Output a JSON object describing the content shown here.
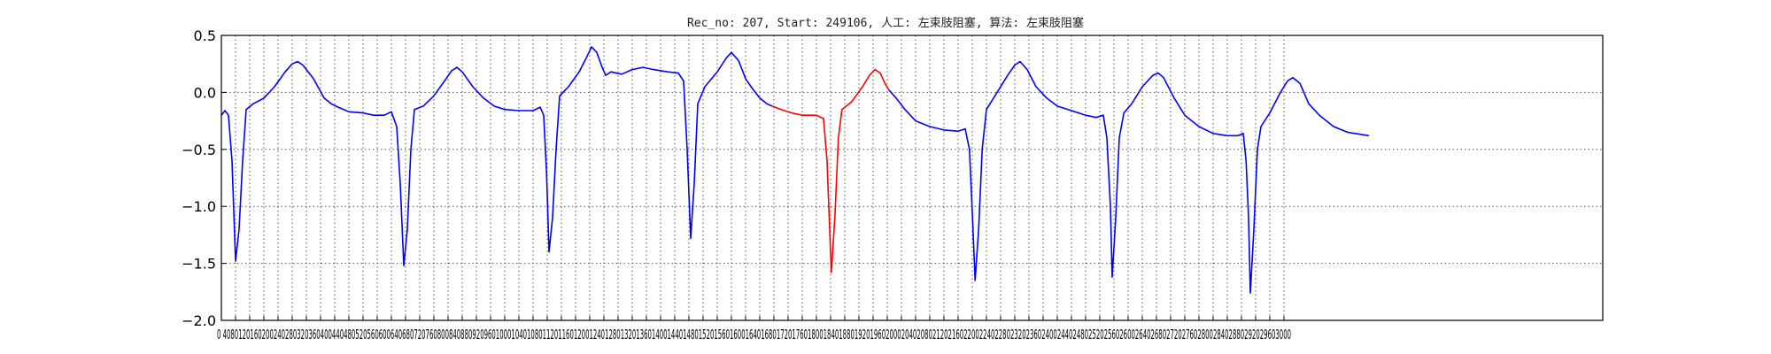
{
  "chart_data": {
    "type": "line",
    "title": "Rec_no: 207, Start: 249106, 人工: 左束肢阻塞, 算法: 左束肢阻塞",
    "xlabel": "",
    "ylabel": "",
    "xlim": [
      0,
      3240
    ],
    "ylim": [
      -2.0,
      0.5
    ],
    "grid": true,
    "yticks": [
      0.5,
      0.0,
      -0.5,
      -1.0,
      -1.5,
      -2.0
    ],
    "ytick_labels": [
      "0.5",
      "0.0",
      "−0.5",
      "−1.0",
      "−1.5",
      "−2.0"
    ],
    "xtick_step": 40,
    "xtick_max": 3000,
    "x_tick_label_text": "0 4080120160200240280320360400440480520560600640680720760800840880920960100010401080112011601200124012801320136014001440148015201560160016401680172017601800184018801920196020002040208021202160220022402280232023602400244024802520256026002640268027202760280028402880292029603000",
    "series": [
      {
        "color": "#0000ff",
        "points": [
          [
            0,
            -0.2
          ],
          [
            10,
            -0.16
          ],
          [
            20,
            -0.2
          ],
          [
            30,
            -0.6
          ],
          [
            40,
            -1.48
          ],
          [
            50,
            -1.2
          ],
          [
            60,
            -0.6
          ],
          [
            70,
            -0.15
          ],
          [
            90,
            -0.1
          ],
          [
            120,
            -0.05
          ],
          [
            150,
            0.05
          ],
          [
            180,
            0.18
          ],
          [
            200,
            0.25
          ],
          [
            215,
            0.27
          ],
          [
            230,
            0.24
          ],
          [
            260,
            0.12
          ],
          [
            290,
            -0.05
          ],
          [
            310,
            -0.1
          ],
          [
            330,
            -0.13
          ],
          [
            360,
            -0.17
          ],
          [
            400,
            -0.18
          ],
          [
            430,
            -0.2
          ],
          [
            460,
            -0.2
          ],
          [
            480,
            -0.17
          ],
          [
            495,
            -0.3
          ],
          [
            505,
            -0.8
          ],
          [
            515,
            -1.52
          ],
          [
            525,
            -1.2
          ],
          [
            535,
            -0.5
          ],
          [
            545,
            -0.15
          ],
          [
            570,
            -0.12
          ],
          [
            600,
            -0.03
          ],
          [
            630,
            0.1
          ],
          [
            650,
            0.19
          ],
          [
            665,
            0.22
          ],
          [
            680,
            0.18
          ],
          [
            710,
            0.05
          ],
          [
            740,
            -0.05
          ],
          [
            770,
            -0.12
          ],
          [
            800,
            -0.15
          ],
          [
            840,
            -0.16
          ],
          [
            880,
            -0.16
          ],
          [
            900,
            -0.13
          ],
          [
            910,
            -0.2
          ],
          [
            918,
            -0.7
          ],
          [
            925,
            -1.4
          ],
          [
            935,
            -1.1
          ],
          [
            945,
            -0.5
          ],
          [
            955,
            -0.03
          ],
          [
            980,
            0.05
          ],
          [
            1010,
            0.18
          ],
          [
            1030,
            0.3
          ],
          [
            1045,
            0.4
          ],
          [
            1060,
            0.35
          ],
          [
            1075,
            0.22
          ],
          [
            1085,
            0.15
          ],
          [
            1100,
            0.18
          ],
          [
            1130,
            0.16
          ],
          [
            1160,
            0.2
          ],
          [
            1190,
            0.22
          ],
          [
            1220,
            0.2
          ],
          [
            1260,
            0.18
          ],
          [
            1290,
            0.17
          ],
          [
            1305,
            0.1
          ],
          [
            1315,
            -0.5
          ],
          [
            1325,
            -1.28
          ],
          [
            1335,
            -0.8
          ],
          [
            1345,
            -0.1
          ],
          [
            1365,
            0.05
          ],
          [
            1400,
            0.18
          ],
          [
            1425,
            0.3
          ],
          [
            1440,
            0.35
          ],
          [
            1460,
            0.28
          ],
          [
            1480,
            0.12
          ],
          [
            1500,
            0.03
          ],
          [
            1520,
            -0.05
          ],
          [
            1540,
            -0.1
          ],
          [
            1555,
            -0.12
          ]
        ]
      },
      {
        "color": "#ff0000",
        "points": [
          [
            1555,
            -0.12
          ],
          [
            1580,
            -0.15
          ],
          [
            1610,
            -0.18
          ],
          [
            1640,
            -0.2
          ],
          [
            1680,
            -0.2
          ],
          [
            1700,
            -0.23
          ],
          [
            1710,
            -0.6
          ],
          [
            1722,
            -1.58
          ],
          [
            1732,
            -1.1
          ],
          [
            1742,
            -0.4
          ],
          [
            1752,
            -0.15
          ],
          [
            1780,
            -0.08
          ],
          [
            1810,
            0.05
          ],
          [
            1830,
            0.15
          ],
          [
            1845,
            0.2
          ],
          [
            1860,
            0.17
          ],
          [
            1875,
            0.07
          ],
          [
            1885,
            0.02
          ]
        ]
      },
      {
        "color": "#0000ff",
        "points": [
          [
            1885,
            0.02
          ],
          [
            1905,
            -0.05
          ],
          [
            1930,
            -0.15
          ],
          [
            1960,
            -0.25
          ],
          [
            2000,
            -0.3
          ],
          [
            2040,
            -0.33
          ],
          [
            2080,
            -0.34
          ],
          [
            2100,
            -0.32
          ],
          [
            2112,
            -0.5
          ],
          [
            2120,
            -1.05
          ],
          [
            2128,
            -1.65
          ],
          [
            2138,
            -1.2
          ],
          [
            2148,
            -0.5
          ],
          [
            2160,
            -0.15
          ],
          [
            2190,
            0.0
          ],
          [
            2220,
            0.15
          ],
          [
            2240,
            0.24
          ],
          [
            2255,
            0.27
          ],
          [
            2275,
            0.2
          ],
          [
            2300,
            0.05
          ],
          [
            2330,
            -0.05
          ],
          [
            2360,
            -0.12
          ],
          [
            2400,
            -0.16
          ],
          [
            2440,
            -0.2
          ],
          [
            2470,
            -0.22
          ],
          [
            2490,
            -0.2
          ],
          [
            2500,
            -0.4
          ],
          [
            2510,
            -1.0
          ],
          [
            2515,
            -1.62
          ],
          [
            2525,
            -1.1
          ],
          [
            2535,
            -0.4
          ],
          [
            2548,
            -0.18
          ],
          [
            2570,
            -0.1
          ],
          [
            2600,
            0.05
          ],
          [
            2630,
            0.15
          ],
          [
            2645,
            0.17
          ],
          [
            2660,
            0.13
          ],
          [
            2690,
            -0.05
          ],
          [
            2720,
            -0.2
          ],
          [
            2760,
            -0.3
          ],
          [
            2800,
            -0.36
          ],
          [
            2840,
            -0.38
          ],
          [
            2870,
            -0.38
          ],
          [
            2885,
            -0.36
          ],
          [
            2893,
            -0.6
          ],
          [
            2900,
            -1.1
          ],
          [
            2905,
            -1.76
          ],
          [
            2915,
            -1.2
          ],
          [
            2925,
            -0.5
          ],
          [
            2935,
            -0.3
          ],
          [
            2960,
            -0.18
          ],
          [
            2990,
            0.0
          ],
          [
            3010,
            0.1
          ],
          [
            3025,
            0.13
          ],
          [
            3045,
            0.08
          ],
          [
            3070,
            -0.1
          ],
          [
            3100,
            -0.2
          ],
          [
            3140,
            -0.3
          ],
          [
            3180,
            -0.35
          ],
          [
            3220,
            -0.37
          ],
          [
            3240,
            -0.38
          ]
        ]
      }
    ]
  }
}
